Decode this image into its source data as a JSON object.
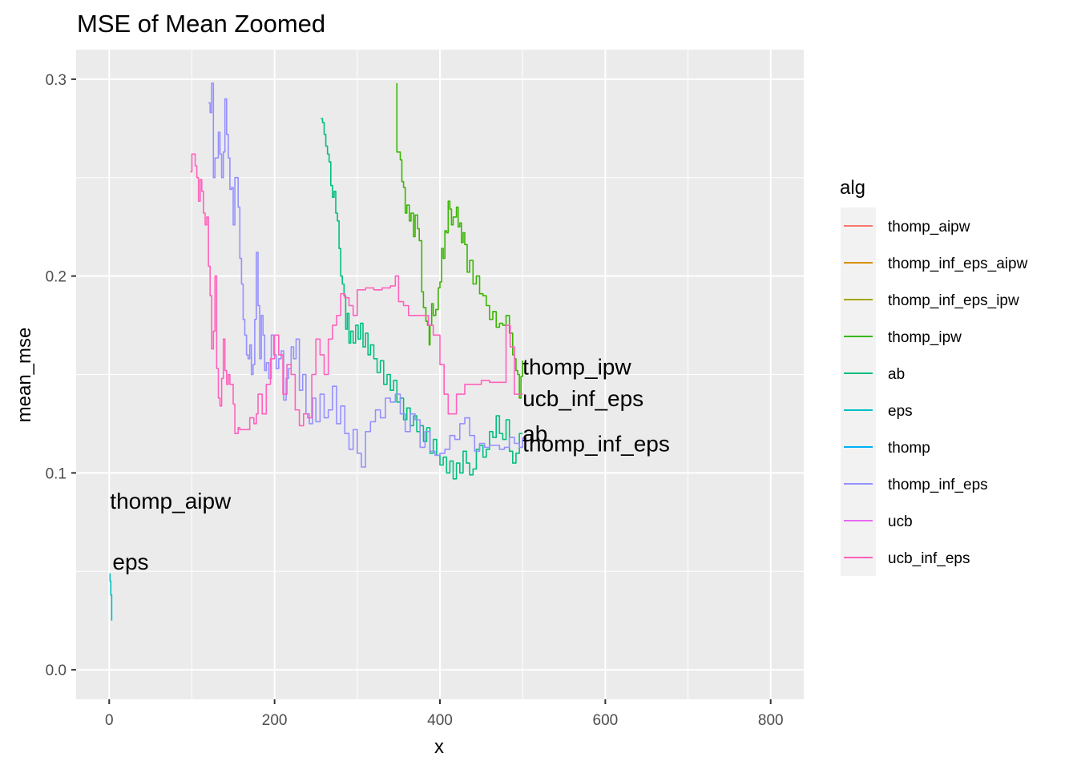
{
  "chart_data": {
    "type": "line",
    "title": "MSE of Mean Zoomed",
    "xlabel": "x",
    "ylabel": "mean_mse",
    "xlim": [
      -40,
      840
    ],
    "ylim": [
      -0.015,
      0.315
    ],
    "x_ticks": [
      0,
      200,
      400,
      600,
      800
    ],
    "x_tick_labels": [
      "0",
      "200",
      "400",
      "600",
      "800"
    ],
    "y_ticks": [
      0.0,
      0.1,
      0.2,
      0.3
    ],
    "y_tick_labels": [
      "0.0",
      "0.1",
      "0.2",
      "0.3"
    ],
    "grid": true,
    "legend": {
      "title": "alg",
      "position": "right",
      "entries": [
        {
          "label": "thomp_aipw",
          "color": "#F8766D"
        },
        {
          "label": "thomp_inf_eps_aipw",
          "color": "#D89000"
        },
        {
          "label": "thomp_inf_eps_ipw",
          "color": "#A3A500"
        },
        {
          "label": "thomp_ipw",
          "color": "#39B600"
        },
        {
          "label": "ab",
          "color": "#00BF7D"
        },
        {
          "label": "eps",
          "color": "#00BFC4"
        },
        {
          "label": "thomp",
          "color": "#00B0F6"
        },
        {
          "label": "thomp_inf_eps",
          "color": "#9590FF"
        },
        {
          "label": "ucb",
          "color": "#E76BF3"
        },
        {
          "label": "ucb_inf_eps",
          "color": "#FF62BC"
        }
      ]
    },
    "series": [
      {
        "name": "eps",
        "color": "#00BFC4",
        "x": [
          1,
          1,
          2,
          2,
          3,
          3
        ],
        "y": [
          0.049,
          0.045,
          0.045,
          0.038,
          0.038,
          0.025
        ]
      },
      {
        "name": "thomp_ipw",
        "color": "#39B600",
        "x": [
          348,
          348,
          352,
          354,
          356,
          358,
          360,
          363,
          365,
          368,
          370,
          373,
          375,
          378,
          380,
          383,
          385,
          387,
          388,
          390,
          392,
          395,
          398,
          400,
          402,
          404,
          406,
          408,
          410,
          412,
          414,
          416,
          418,
          420,
          422,
          424,
          426,
          428,
          430,
          433,
          436,
          440,
          444,
          448,
          452,
          456,
          460,
          464,
          468,
          472,
          476,
          480,
          484,
          488,
          490,
          492,
          494,
          496,
          498,
          500
        ],
        "y": [
          0.298,
          0.263,
          0.259,
          0.248,
          0.245,
          0.232,
          0.236,
          0.228,
          0.232,
          0.22,
          0.231,
          0.224,
          0.218,
          0.192,
          0.184,
          0.177,
          0.175,
          0.165,
          0.175,
          0.186,
          0.18,
          0.183,
          0.194,
          0.197,
          0.214,
          0.209,
          0.223,
          0.222,
          0.238,
          0.234,
          0.226,
          0.23,
          0.23,
          0.235,
          0.225,
          0.227,
          0.217,
          0.222,
          0.216,
          0.202,
          0.208,
          0.196,
          0.2,
          0.191,
          0.19,
          0.185,
          0.178,
          0.182,
          0.174,
          0.176,
          0.175,
          0.18,
          0.171,
          0.16,
          0.158,
          0.152,
          0.15,
          0.138,
          0.149,
          0.157
        ]
      },
      {
        "name": "ab",
        "color": "#00BF7D",
        "x": [
          256,
          258,
          260,
          262,
          264,
          266,
          268,
          270,
          272,
          274,
          276,
          278,
          280,
          282,
          284,
          286,
          288,
          290,
          292,
          295,
          298,
          301,
          304,
          307,
          310,
          313,
          316,
          320,
          324,
          328,
          332,
          336,
          340,
          344,
          348,
          352,
          356,
          360,
          364,
          368,
          372,
          376,
          380,
          384,
          388,
          392,
          396,
          400,
          404,
          408,
          412,
          416,
          420,
          424,
          428,
          432,
          436,
          440,
          444,
          448,
          452,
          456,
          460,
          464,
          468,
          472,
          476,
          480,
          484,
          488,
          492,
          496,
          500
        ],
        "y": [
          0.28,
          0.278,
          0.272,
          0.266,
          0.262,
          0.258,
          0.246,
          0.24,
          0.243,
          0.232,
          0.228,
          0.214,
          0.2,
          0.196,
          0.19,
          0.173,
          0.181,
          0.166,
          0.172,
          0.166,
          0.175,
          0.168,
          0.176,
          0.164,
          0.171,
          0.16,
          0.165,
          0.158,
          0.151,
          0.157,
          0.145,
          0.15,
          0.142,
          0.147,
          0.136,
          0.138,
          0.127,
          0.133,
          0.124,
          0.129,
          0.121,
          0.124,
          0.116,
          0.123,
          0.11,
          0.117,
          0.109,
          0.104,
          0.108,
          0.1,
          0.106,
          0.097,
          0.105,
          0.1,
          0.111,
          0.105,
          0.099,
          0.102,
          0.112,
          0.114,
          0.108,
          0.112,
          0.121,
          0.118,
          0.129,
          0.12,
          0.117,
          0.127,
          0.111,
          0.105,
          0.11,
          0.12,
          0.12
        ]
      },
      {
        "name": "thomp_inf_eps",
        "color": "#9590FF",
        "x": [
          120,
          122,
          124,
          126,
          128,
          130,
          132,
          134,
          136,
          138,
          140,
          142,
          144,
          146,
          148,
          150,
          152,
          154,
          156,
          158,
          160,
          162,
          164,
          166,
          168,
          170,
          172,
          174,
          176,
          178,
          180,
          182,
          184,
          186,
          188,
          190,
          193,
          196,
          199,
          202,
          205,
          208,
          211,
          214,
          217,
          220,
          223,
          226,
          230,
          234,
          238,
          242,
          246,
          250,
          255,
          260,
          265,
          270,
          275,
          280,
          285,
          290,
          295,
          300,
          305,
          310,
          316,
          322,
          328,
          334,
          340,
          346,
          352,
          358,
          364,
          370,
          376,
          382,
          388,
          394,
          400,
          406,
          412,
          418,
          424,
          430,
          436,
          442,
          448,
          454,
          460,
          466,
          472,
          478,
          484,
          490,
          496,
          500
        ],
        "y": [
          0.288,
          0.283,
          0.298,
          0.25,
          0.26,
          0.26,
          0.273,
          0.262,
          0.25,
          0.263,
          0.29,
          0.272,
          0.26,
          0.244,
          0.245,
          0.226,
          0.25,
          0.25,
          0.235,
          0.209,
          0.196,
          0.178,
          0.17,
          0.16,
          0.158,
          0.165,
          0.15,
          0.155,
          0.178,
          0.212,
          0.185,
          0.158,
          0.18,
          0.17,
          0.152,
          0.156,
          0.148,
          0.17,
          0.16,
          0.153,
          0.158,
          0.162,
          0.137,
          0.148,
          0.153,
          0.164,
          0.158,
          0.168,
          0.142,
          0.15,
          0.13,
          0.125,
          0.138,
          0.126,
          0.14,
          0.128,
          0.132,
          0.144,
          0.125,
          0.134,
          0.12,
          0.112,
          0.122,
          0.11,
          0.103,
          0.121,
          0.126,
          0.132,
          0.128,
          0.138,
          0.136,
          0.14,
          0.13,
          0.121,
          0.13,
          0.127,
          0.113,
          0.121,
          0.111,
          0.109,
          0.11,
          0.112,
          0.119,
          0.117,
          0.125,
          0.128,
          0.119,
          0.111,
          0.115,
          0.113,
          0.114,
          0.114,
          0.112,
          0.113,
          0.118,
          0.115,
          0.113,
          0.118
        ]
      },
      {
        "name": "ucb_inf_eps",
        "color": "#FF62BC",
        "x": [
          98,
          100,
          102,
          104,
          106,
          108,
          110,
          112,
          114,
          116,
          118,
          120,
          122,
          124,
          126,
          128,
          130,
          132,
          134,
          136,
          138,
          140,
          142,
          144,
          146,
          148,
          150,
          152,
          154,
          156,
          158,
          160,
          165,
          170,
          175,
          178,
          180,
          185,
          190,
          195,
          200,
          205,
          210,
          215,
          220,
          225,
          230,
          235,
          240,
          245,
          250,
          255,
          260,
          265,
          270,
          275,
          280,
          285,
          290,
          295,
          300,
          310,
          320,
          330,
          340,
          346,
          350,
          356,
          362,
          368,
          374,
          380,
          386,
          392,
          400,
          405,
          410,
          415,
          420,
          430,
          440,
          450,
          460,
          470,
          480,
          485,
          490,
          495,
          498,
          500
        ],
        "y": [
          0.253,
          0.262,
          0.262,
          0.256,
          0.25,
          0.238,
          0.249,
          0.243,
          0.232,
          0.226,
          0.23,
          0.205,
          0.19,
          0.163,
          0.172,
          0.2,
          0.153,
          0.138,
          0.134,
          0.148,
          0.168,
          0.152,
          0.145,
          0.15,
          0.145,
          0.145,
          0.135,
          0.12,
          0.12,
          0.123,
          0.122,
          0.122,
          0.122,
          0.128,
          0.125,
          0.13,
          0.14,
          0.13,
          0.145,
          0.158,
          0.17,
          0.16,
          0.14,
          0.155,
          0.15,
          0.132,
          0.124,
          0.13,
          0.128,
          0.15,
          0.168,
          0.16,
          0.15,
          0.168,
          0.175,
          0.18,
          0.191,
          0.189,
          0.185,
          0.18,
          0.193,
          0.194,
          0.193,
          0.194,
          0.195,
          0.2,
          0.187,
          0.185,
          0.18,
          0.18,
          0.18,
          0.18,
          0.175,
          0.17,
          0.155,
          0.14,
          0.13,
          0.13,
          0.14,
          0.145,
          0.145,
          0.147,
          0.146,
          0.146,
          0.175,
          0.164,
          0.14,
          0.14,
          0.14,
          0.14
        ]
      }
    ],
    "annotations": [
      {
        "text": "thomp_ipw",
        "x": 500,
        "y": 0.154
      },
      {
        "text": "ucb_inf_eps",
        "x": 500,
        "y": 0.138
      },
      {
        "text": "ab",
        "x": 500,
        "y": 0.12
      },
      {
        "text": "thomp_inf_eps",
        "x": 500,
        "y": 0.115
      },
      {
        "text": "thomp_aipw",
        "x": 1,
        "y": 0.086
      },
      {
        "text": "eps",
        "x": 4,
        "y": 0.055
      }
    ]
  }
}
